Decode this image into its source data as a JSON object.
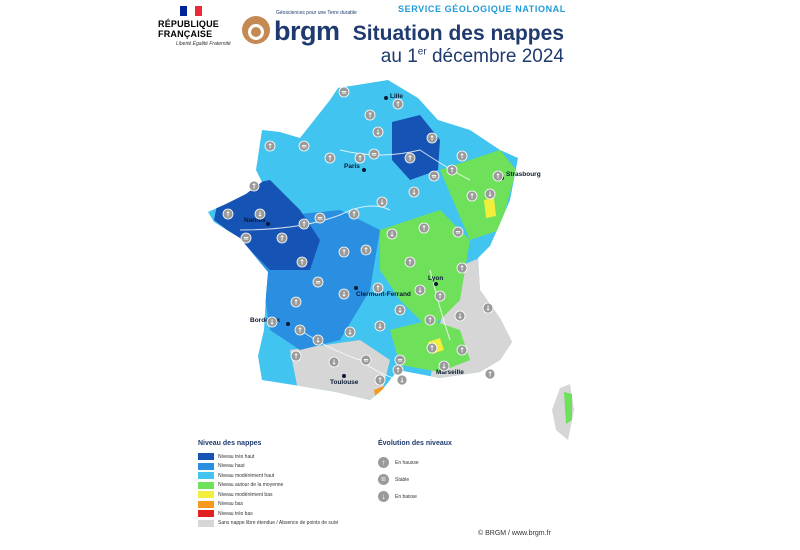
{
  "header": {
    "republic_name": "RÉPUBLIQUE FRANÇAISE",
    "motto": "Liberté Égalité Fraternité",
    "brgm_brand": "brgm",
    "brgm_tagline": "Géosciences pour une Terre durable",
    "service": "SERVICE GÉOLOGIQUE NATIONAL",
    "title": "Situation des nappes",
    "subtitle_pre": "au 1",
    "subtitle_sup": "er",
    "subtitle_post": " décembre 2024"
  },
  "cities": {
    "lille": "Lille",
    "paris": "Paris",
    "strasbourg": "Strasbourg",
    "nantes": "Nantes",
    "clermont": "Clermont-Ferrand",
    "lyon": "Lyon",
    "bordeaux": "Bordeaux",
    "toulouse": "Toulouse",
    "marseille": "Marseille"
  },
  "legend": {
    "title": "Niveau des nappes",
    "items": [
      {
        "label": "Niveau très haut",
        "color": "#1553b5"
      },
      {
        "label": "Niveau haut",
        "color": "#2a8fe0"
      },
      {
        "label": "Niveau modérément haut",
        "color": "#42c4f0"
      },
      {
        "label": "Niveau autour de la moyenne",
        "color": "#6fe05a"
      },
      {
        "label": "Niveau modérément bas",
        "color": "#f2ee3c"
      },
      {
        "label": "Niveau bas",
        "color": "#f59a1e"
      },
      {
        "label": "Niveau très bas",
        "color": "#e32020"
      },
      {
        "label": "Sans nappe libre étendue / Absence de points de suivi",
        "color": "#d6d6d6"
      }
    ]
  },
  "evolution": {
    "title": "Évolution des niveaux",
    "items": [
      {
        "label": "En hausse",
        "icon": "arrow-up-icon"
      },
      {
        "label": "Stable",
        "icon": "equals-icon"
      },
      {
        "label": "En baisse",
        "icon": "arrow-down-icon"
      }
    ]
  },
  "credit": "© BRGM / www.brgm.fr"
}
